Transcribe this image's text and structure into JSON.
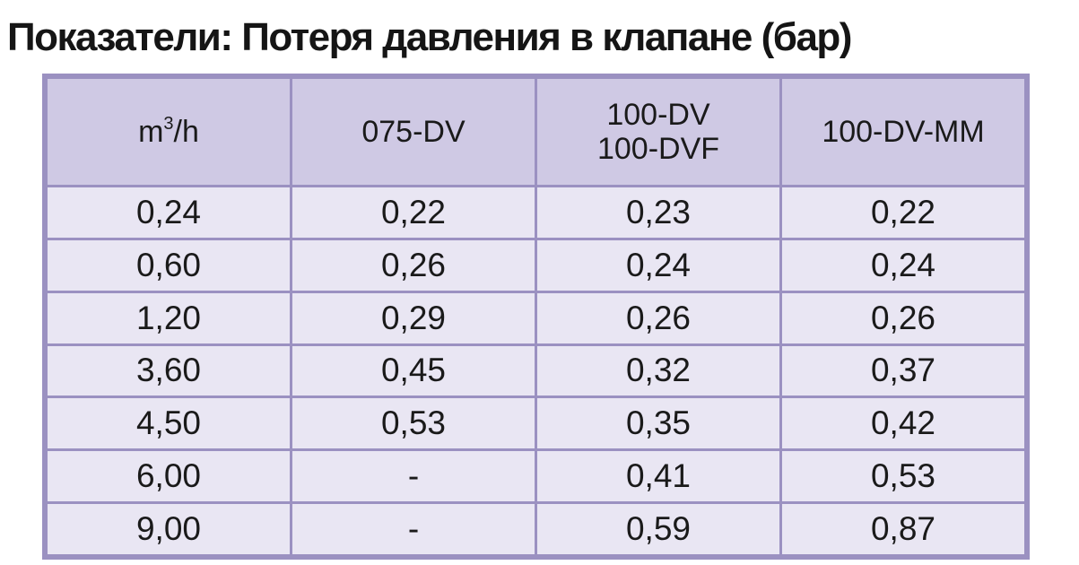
{
  "title": "Показатели: Потеря давления в клапане (бар)",
  "table": {
    "header": {
      "flow_unit_base": "m",
      "flow_unit_sup": "3",
      "flow_unit_rest": "/h",
      "col_075": "075-DV",
      "col_100_line1": "100-DV",
      "col_100_line2": "100-DVF",
      "col_100mm": "100-DV-MM"
    },
    "rows": [
      [
        "0,24",
        "0,22",
        "0,23",
        "0,22"
      ],
      [
        "0,60",
        "0,26",
        "0,24",
        "0,24"
      ],
      [
        "1,20",
        "0,29",
        "0,26",
        "0,26"
      ],
      [
        "3,60",
        "0,45",
        "0,32",
        "0,37"
      ],
      [
        "4,50",
        "0,53",
        "0,35",
        "0,42"
      ],
      [
        "6,00",
        "-",
        "0,41",
        "0,53"
      ],
      [
        "9,00",
        "-",
        "0,59",
        "0,87"
      ]
    ]
  },
  "colors": {
    "border": "#9b91c1",
    "header_bg": "#cfc9e4",
    "cell_bg": "#e9e6f3",
    "text": "#1a1a1a"
  }
}
